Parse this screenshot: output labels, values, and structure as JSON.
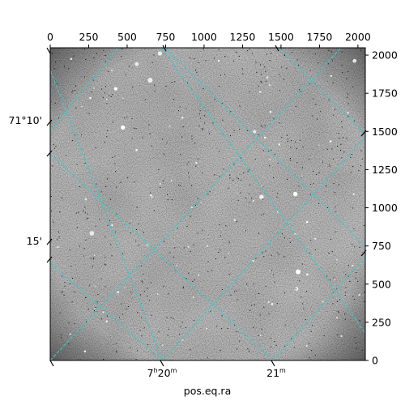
{
  "figure": {
    "xlabel": "pos.eq.ra",
    "top_ticks": [
      "0",
      "250",
      "500",
      "750",
      "1000",
      "1250",
      "1500",
      "1750",
      "2000"
    ],
    "right_ticks": [
      "0",
      "250",
      "500",
      "750",
      "1000",
      "1250",
      "1500",
      "1750",
      "2000"
    ],
    "ra_ticks": [
      {
        "h": "7",
        "m": "20"
      },
      {
        "h": "",
        "m": "21"
      }
    ],
    "dec_ticks": [
      "71°10'",
      "15'"
    ],
    "grid_color": "#3cc8c8",
    "image_style": "grayscale astronomical image with scattered stars"
  }
}
